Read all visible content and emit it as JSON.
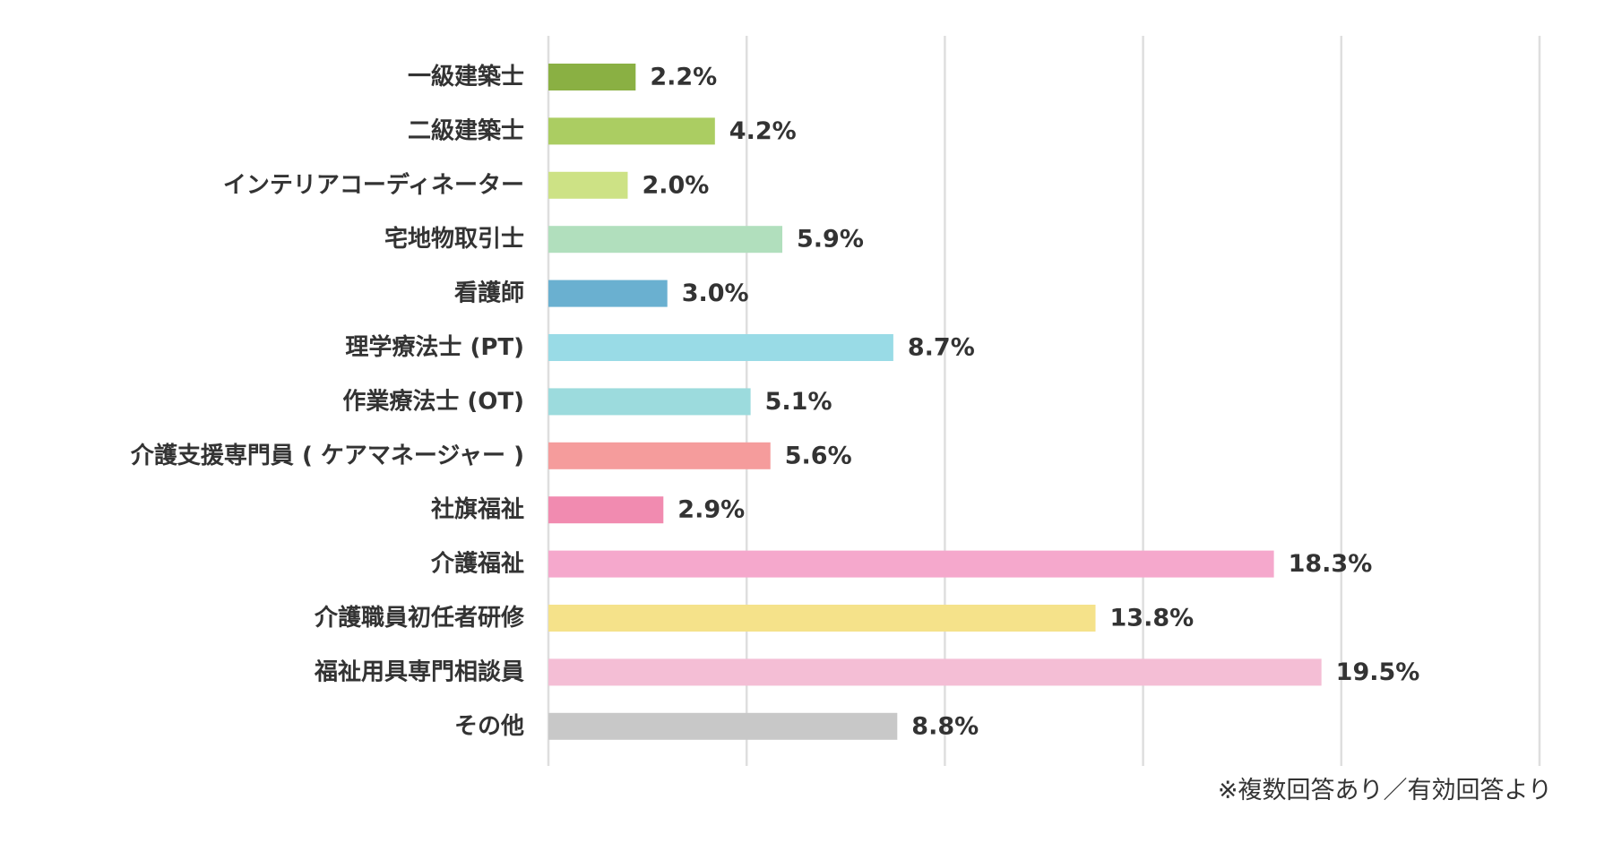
{
  "chart_data": {
    "type": "bar",
    "orientation": "horizontal",
    "categories": [
      "一級建築士",
      "二級建築士",
      "インテリアコーディネーター",
      "宅地物取引士",
      "看護師",
      "理学療法士 (PT)",
      "作業療法士 (OT)",
      "介護支援専門員 ( ケアマネージャー )",
      "社旗福祉",
      "介護福祉",
      "介護職員初任者研修",
      "福祉用具専門相談員",
      "その他"
    ],
    "values": [
      2.2,
      4.2,
      2.0,
      5.9,
      3.0,
      8.7,
      5.1,
      5.6,
      2.9,
      18.3,
      13.8,
      19.5,
      8.8
    ],
    "value_labels": [
      "2.2%",
      "4.2%",
      "2.0%",
      "5.9%",
      "3.0%",
      "8.7%",
      "5.1%",
      "5.6%",
      "2.9%",
      "18.3%",
      "13.8%",
      "19.5%",
      "8.8%"
    ],
    "colors": [
      "#8ab043",
      "#abcd62",
      "#cde285",
      "#b1dfbd",
      "#6ab0d0",
      "#99dbe6",
      "#9cdbdd",
      "#f59c9c",
      "#f18bb0",
      "#f5a8cc",
      "#f5e28a",
      "#f4bed5",
      "#c8c8c8"
    ],
    "xlim": [
      0,
      25
    ],
    "x_gridlines": [
      0,
      5,
      10,
      15,
      20,
      25
    ],
    "grid": true,
    "legend": "none"
  },
  "footnote": "※複数回答あり／有効回答より"
}
